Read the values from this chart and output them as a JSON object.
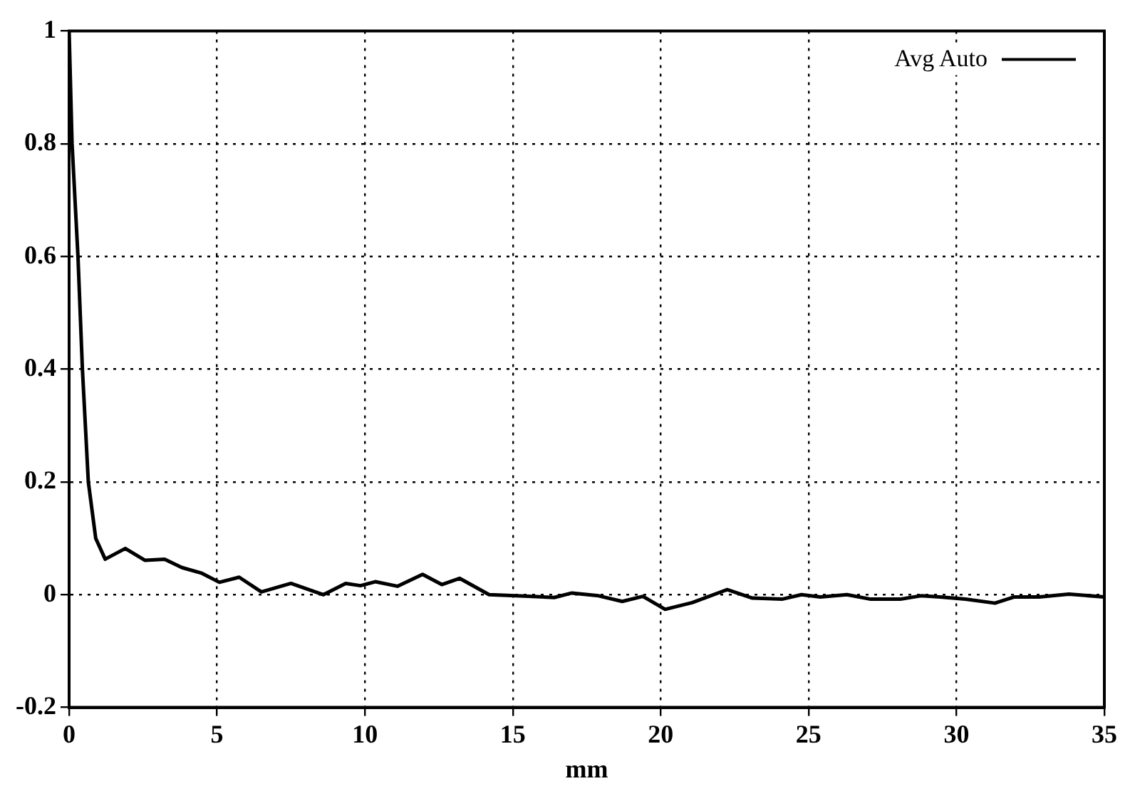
{
  "chart_data": {
    "type": "line",
    "xlabel": "mm",
    "xlim": [
      0,
      35
    ],
    "xticks": [
      0,
      5,
      10,
      15,
      20,
      25,
      30,
      35
    ],
    "ylim": [
      -0.2,
      1
    ],
    "yticks": [
      -0.2,
      0,
      0.2,
      0.4,
      0.6,
      0.8,
      1
    ],
    "grid": true,
    "legend": "top right",
    "line_style": "solid",
    "marker": "none",
    "series": [
      {
        "name": "Avg Auto",
        "color": "#000000",
        "x": [
          0,
          0.1,
          0.3,
          0.45,
          0.65,
          0.9,
          1.22,
          1.9,
          2.56,
          3.23,
          3.82,
          4.49,
          5.08,
          5.75,
          6.5,
          7.5,
          8.6,
          9.35,
          9.85,
          10.35,
          11.1,
          11.95,
          12.6,
          13.2,
          14.2,
          15.1,
          16.4,
          17,
          17.9,
          18.7,
          19.4,
          20.15,
          21.07,
          22.25,
          23.1,
          24.1,
          24.76,
          25.4,
          26.3,
          27.1,
          28.1,
          28.8,
          29.45,
          30.3,
          31.3,
          31.96,
          32.8,
          33.8,
          35
        ],
        "values": [
          1,
          0.8,
          0.6,
          0.4,
          0.2,
          0.1,
          0.063,
          0.082,
          0.061,
          0.063,
          0.048,
          0.038,
          0.022,
          0.031,
          0.005,
          0.02,
          0,
          0.02,
          0.016,
          0.023,
          0.015,
          0.036,
          0.018,
          0.029,
          0,
          -0.002,
          -0.005,
          0.003,
          -0.002,
          -0.012,
          -0.003,
          -0.026,
          -0.014,
          0.009,
          -0.006,
          -0.008,
          0,
          -0.004,
          0,
          -0.008,
          -0.008,
          -0.002,
          -0.004,
          -0.008,
          -0.015,
          -0.004,
          -0.004,
          0.001,
          -0.004
        ]
      }
    ]
  }
}
